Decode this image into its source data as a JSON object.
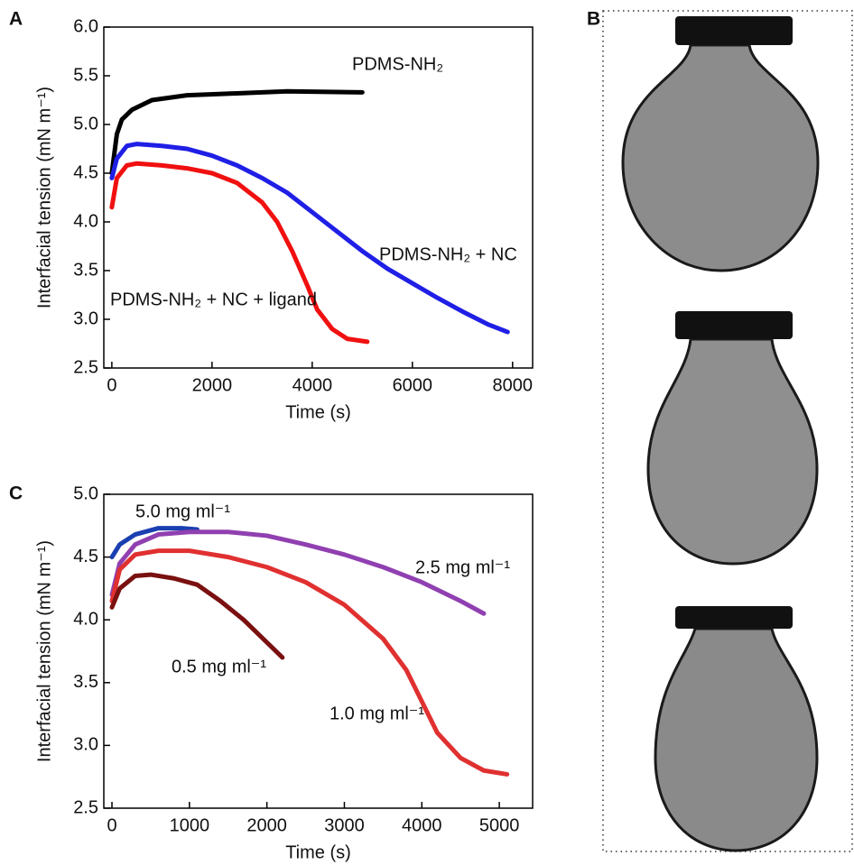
{
  "chart_data": [
    {
      "type": "line",
      "label": "A",
      "xlabel": "Time (s)",
      "ylabel": "Interfacial tension (mN m⁻¹)",
      "xlim": [
        -160,
        8400
      ],
      "xticks": [
        0,
        2000,
        4000,
        6000,
        8000
      ],
      "ylim": [
        2.5,
        6.0
      ],
      "yticks": [
        {
          "value": 2.5,
          "label": "2.5"
        },
        {
          "value": 3.0,
          "label": "3.0"
        },
        {
          "value": 3.5,
          "label": "3.5"
        },
        {
          "value": 4.0,
          "label": "4.0"
        },
        {
          "value": 4.5,
          "label": "4.5"
        },
        {
          "value": 5.0,
          "label": "5.0"
        },
        {
          "value": 5.5,
          "label": "5.5"
        },
        {
          "value": 6.0,
          "label": "6.0"
        }
      ],
      "series": [
        {
          "name": "PDMS-NH₂",
          "color": "#000000",
          "x": [
            0,
            100,
            200,
            400,
            800,
            1500,
            2500,
            3500,
            5000
          ],
          "values": [
            4.5,
            4.9,
            5.05,
            5.15,
            5.25,
            5.3,
            5.32,
            5.34,
            5.33
          ]
        },
        {
          "name": "PDMS-NH₂ + NC",
          "color": "#1f1fe6",
          "x": [
            0,
            100,
            300,
            500,
            1000,
            1500,
            2000,
            2500,
            3000,
            3500,
            4000,
            4500,
            5000,
            5500,
            6000,
            6500,
            7000,
            7500,
            7900
          ],
          "values": [
            4.45,
            4.65,
            4.78,
            4.8,
            4.78,
            4.75,
            4.68,
            4.58,
            4.45,
            4.3,
            4.1,
            3.9,
            3.7,
            3.52,
            3.37,
            3.22,
            3.08,
            2.95,
            2.87
          ]
        },
        {
          "name": "PDMS-NH₂ + NC + ligand",
          "color": "#f01010",
          "x": [
            0,
            100,
            300,
            500,
            1000,
            1500,
            2000,
            2500,
            3000,
            3300,
            3600,
            3900,
            4100,
            4400,
            4700,
            5100
          ],
          "values": [
            4.15,
            4.45,
            4.58,
            4.6,
            4.58,
            4.55,
            4.5,
            4.4,
            4.2,
            4.0,
            3.7,
            3.35,
            3.1,
            2.9,
            2.8,
            2.77
          ]
        }
      ]
    },
    {
      "type": "line",
      "label": "C",
      "xlabel": "Time (s)",
      "ylabel": "Interfacial tension (mN m⁻¹)",
      "xlim": [
        -105,
        5430
      ],
      "xticks": [
        0,
        1000,
        2000,
        3000,
        4000,
        5000
      ],
      "ylim": [
        2.5,
        5.0
      ],
      "yticks": [
        {
          "value": 2.5,
          "label": "2.5"
        },
        {
          "value": 3.0,
          "label": "3.0"
        },
        {
          "value": 3.5,
          "label": "3.5"
        },
        {
          "value": 4.0,
          "label": "4.0"
        },
        {
          "value": 4.5,
          "label": "4.5"
        },
        {
          "value": 5.0,
          "label": "5.0"
        }
      ],
      "series": [
        {
          "name": "5.0 mg ml⁻¹",
          "color": "#1a3fb0",
          "x": [
            0,
            100,
            300,
            600,
            900,
            1100
          ],
          "values": [
            4.5,
            4.6,
            4.68,
            4.73,
            4.73,
            4.72
          ]
        },
        {
          "name": "2.5 mg ml⁻¹",
          "color": "#9040b0",
          "x": [
            0,
            100,
            300,
            600,
            1000,
            1500,
            2000,
            2500,
            3000,
            3500,
            4000,
            4500,
            4800
          ],
          "values": [
            4.2,
            4.45,
            4.6,
            4.68,
            4.7,
            4.7,
            4.67,
            4.6,
            4.52,
            4.42,
            4.3,
            4.15,
            4.05
          ]
        },
        {
          "name": "1.0 mg ml⁻¹",
          "color": "#e03030",
          "x": [
            0,
            100,
            300,
            600,
            1000,
            1500,
            2000,
            2500,
            3000,
            3500,
            3800,
            4000,
            4200,
            4500,
            4800,
            5100
          ],
          "values": [
            4.15,
            4.4,
            4.52,
            4.55,
            4.55,
            4.5,
            4.42,
            4.3,
            4.12,
            3.85,
            3.6,
            3.35,
            3.1,
            2.9,
            2.8,
            2.77
          ]
        },
        {
          "name": "0.5 mg ml⁻¹",
          "color": "#7a1010",
          "x": [
            0,
            100,
            300,
            500,
            800,
            1100,
            1400,
            1700,
            2000,
            2200
          ],
          "values": [
            4.1,
            4.25,
            4.35,
            4.36,
            4.33,
            4.28,
            4.15,
            4.0,
            3.82,
            3.7
          ]
        }
      ]
    }
  ],
  "image_panel": {
    "label": "B"
  }
}
